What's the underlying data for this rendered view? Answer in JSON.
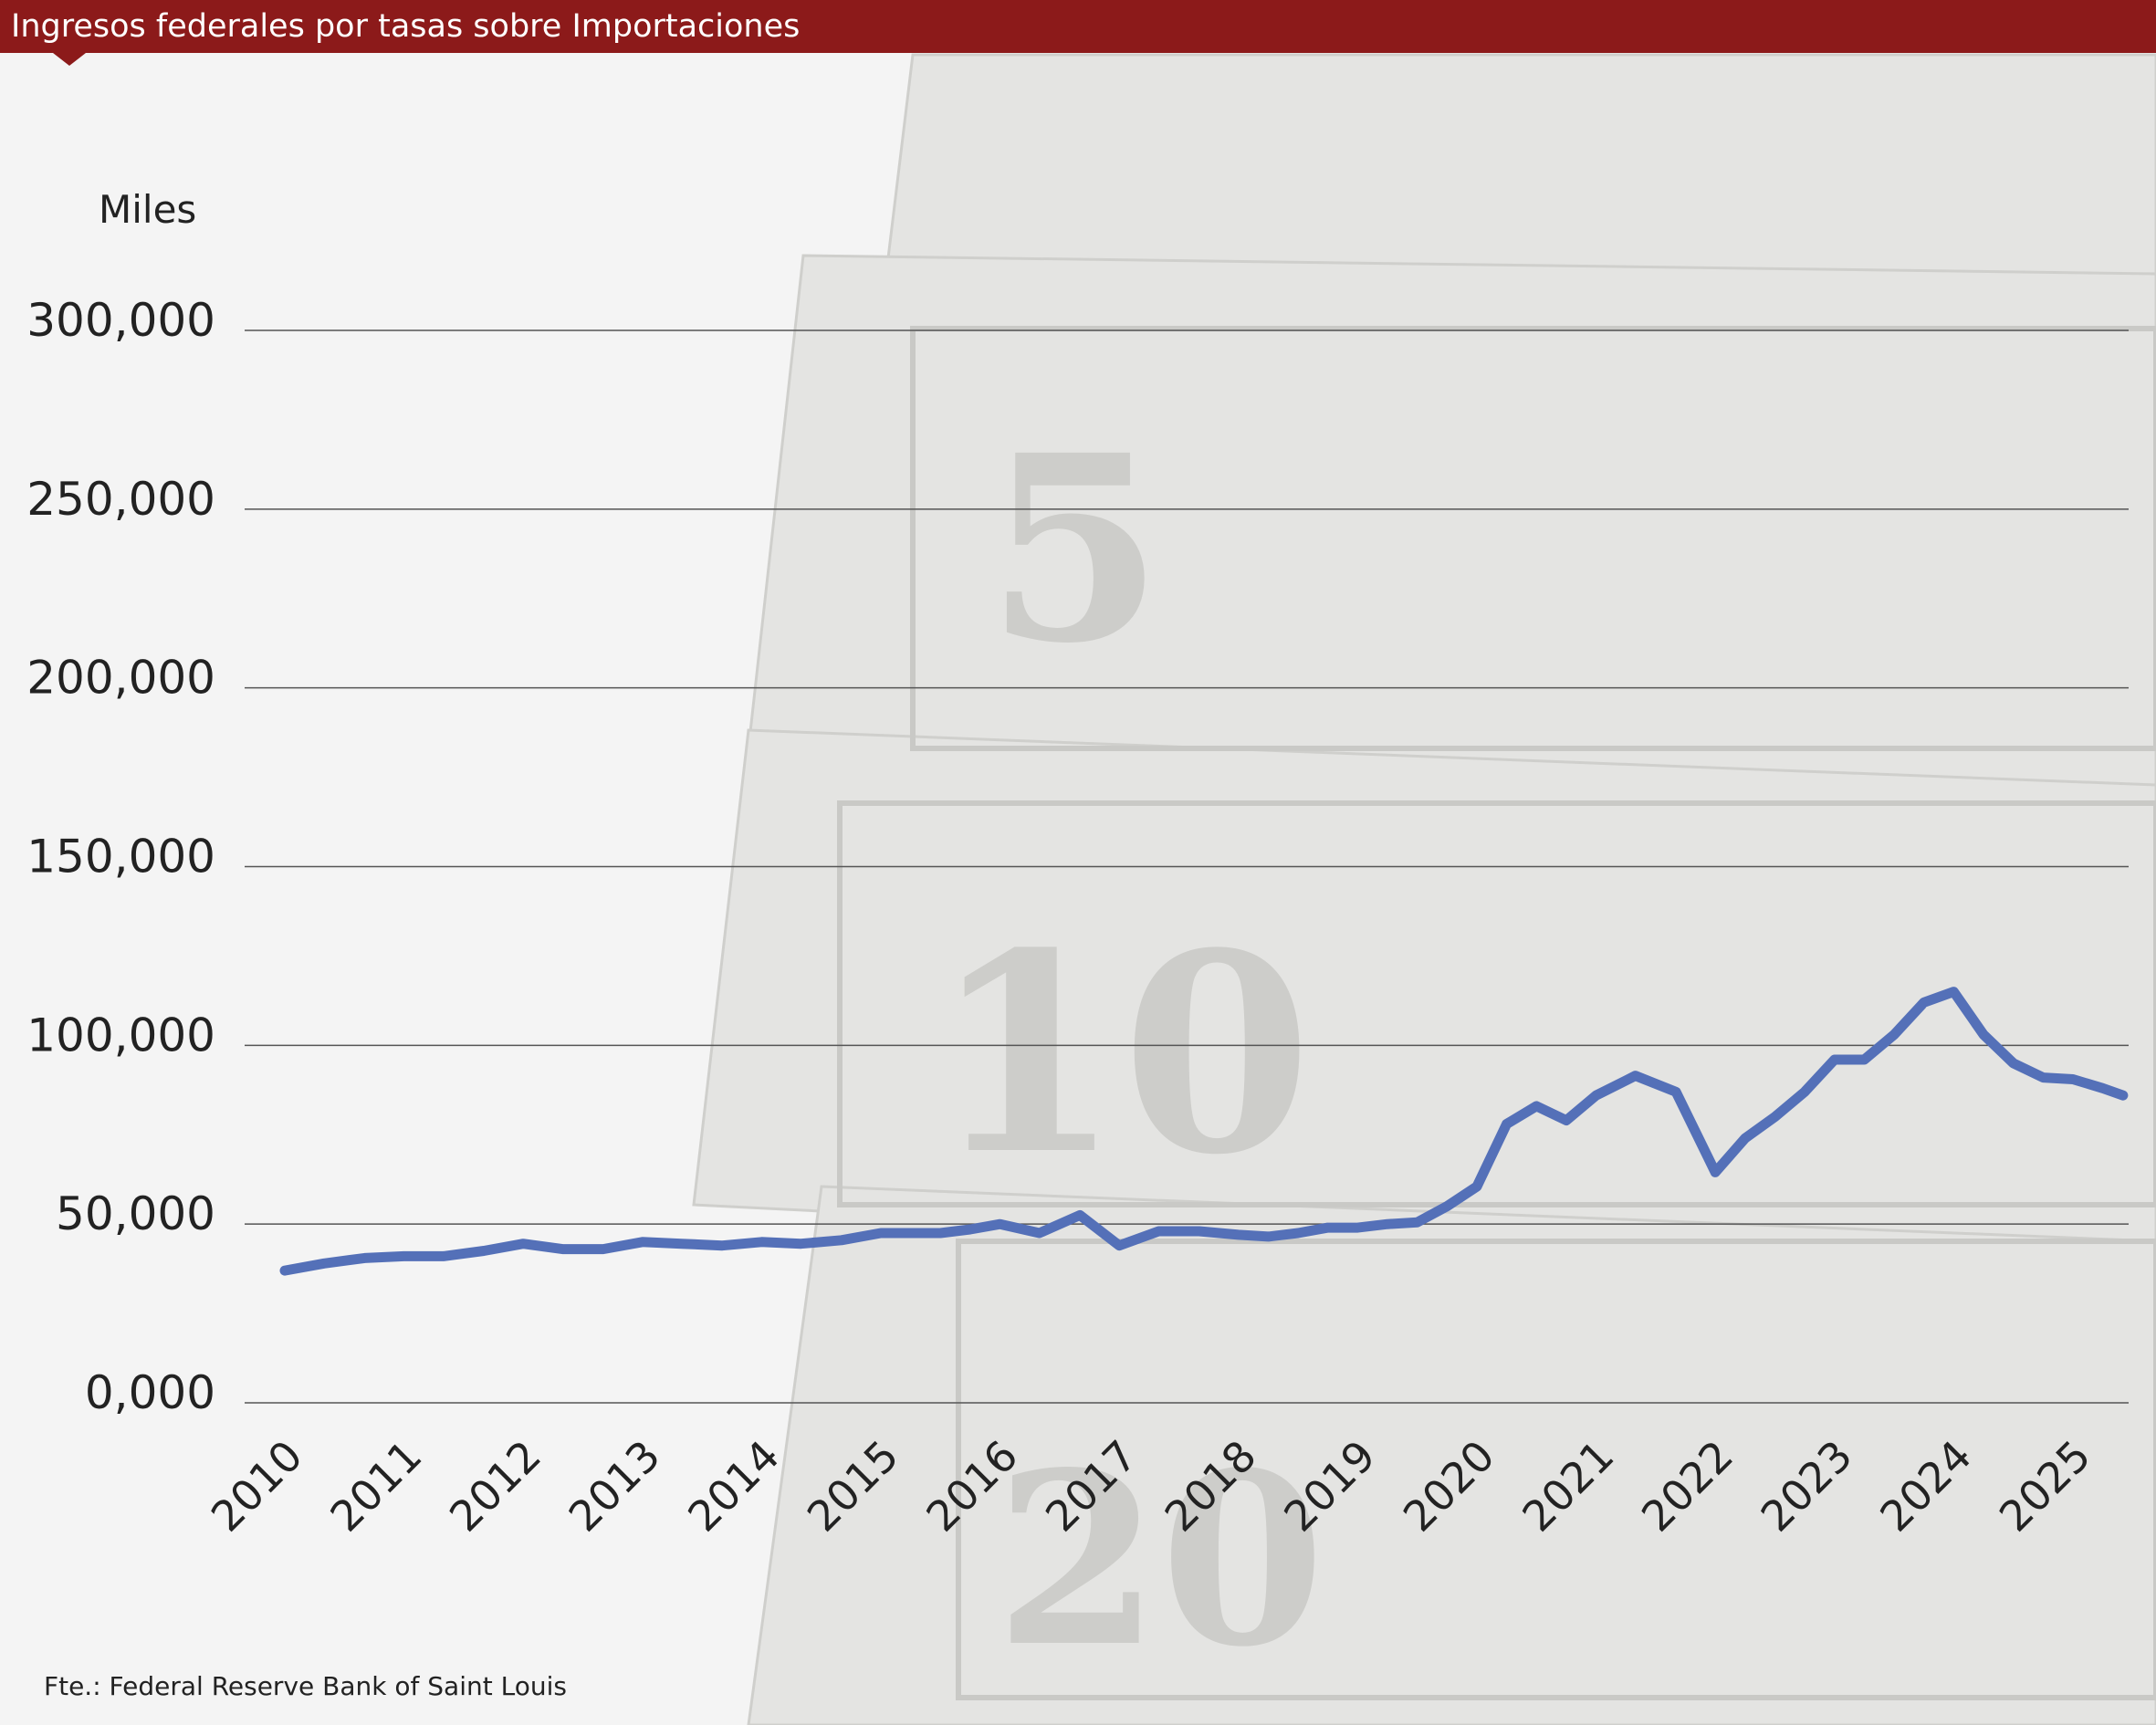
{
  "title": "Ingresos federales por tasas sobre Importaciones",
  "unit_label": "Miles",
  "source": "Fte.: Federal Reserve Bank of Saint Louis",
  "colors": {
    "header": "#8c1a1a",
    "line": "#5470b8",
    "grid": "#555555",
    "text": "#222222"
  },
  "chart_data": {
    "type": "line",
    "title": "Ingresos federales por tasas sobre Importaciones",
    "xlabel": "",
    "ylabel": "Miles",
    "ylim": [
      0,
      300000
    ],
    "xlim": [
      2010,
      2025.5
    ],
    "grid": true,
    "legend": "none",
    "y_ticks": [
      {
        "value": 0,
        "label": "0,000"
      },
      {
        "value": 50000,
        "label": "50,000"
      },
      {
        "value": 100000,
        "label": "100,000"
      },
      {
        "value": 150000,
        "label": "150,000"
      },
      {
        "value": 200000,
        "label": "200,000"
      },
      {
        "value": 250000,
        "label": "250,000"
      },
      {
        "value": 300000,
        "label": "300,000"
      }
    ],
    "x_ticks": [
      "2010",
      "2011",
      "2012",
      "2013",
      "2014",
      "2015",
      "2016",
      "2017",
      "2018",
      "2019",
      "2020",
      "2021",
      "2022",
      "2023",
      "2024",
      "2025"
    ],
    "series": [
      {
        "x": [
          2010.0,
          2010.33,
          2010.67,
          2011.0,
          2011.33,
          2011.67,
          2012.0,
          2012.33,
          2012.67,
          2013.0,
          2013.33,
          2013.67,
          2014.0,
          2014.33,
          2014.67,
          2015.0,
          2015.25,
          2015.5,
          2015.75,
          2016.0,
          2016.33,
          2016.67,
          2017.0,
          2017.33,
          2017.67,
          2018.0,
          2018.25,
          2018.5,
          2018.75,
          2019.0,
          2019.25,
          2019.5,
          2019.75,
          2020.0,
          2020.25,
          2020.5,
          2020.75,
          2021.0,
          2021.33,
          2021.67,
          2022.0,
          2022.25,
          2022.5,
          2022.75,
          2023.0,
          2023.25,
          2023.5,
          2023.75,
          2024.0,
          2024.25,
          2024.5,
          2024.75,
          2025.0,
          2025.25,
          2025.42
        ],
        "values": [
          37000,
          39000,
          40500,
          41000,
          41000,
          42500,
          44500,
          43000,
          43000,
          45000,
          44500,
          44000,
          45000,
          44500,
          45500,
          47500,
          47500,
          47500,
          48500,
          50000,
          47500,
          52500,
          44000,
          48000,
          48000,
          47000,
          46500,
          47500,
          49000,
          49000,
          50000,
          50500,
          55000,
          60500,
          78000,
          83000,
          79000,
          86000,
          91500,
          87000,
          64500,
          74000,
          80000,
          87000,
          96000,
          96000,
          103000,
          112000,
          115000,
          103000,
          95000,
          91000,
          90500,
          88000,
          86000
        ]
      }
    ]
  }
}
